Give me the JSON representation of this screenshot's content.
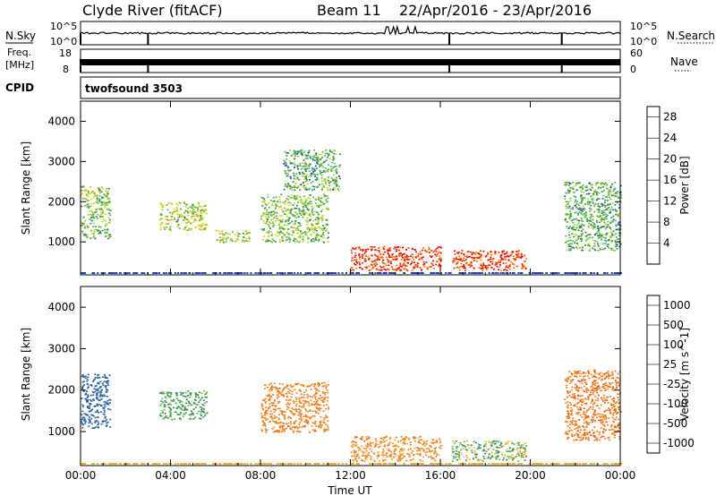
{
  "header": {
    "station": "Clyde River (fitACF)",
    "beam": "Beam 11",
    "date_range": "22/Apr/2016 - 23/Apr/2016"
  },
  "strip_labels": {
    "nsky": "N.Sky",
    "freq_line1": "Freq.",
    "freq_line2": "[MHz]",
    "cpid": "CPID",
    "nsearch": "N.Search",
    "nave": "Nave",
    "cpid_value": "twofsound 3503",
    "nsky_ticks": [
      "10^5",
      "10^0"
    ],
    "freq_ticks": [
      "18",
      "8"
    ],
    "nsearch_ticks": [
      "10^5",
      "10^0"
    ],
    "nave_ticks": [
      "60",
      "0"
    ]
  },
  "colors": {
    "power_scale": [
      "#0018ff",
      "#1e3cb4",
      "#2c8a5a",
      "#58b848",
      "#c8d228",
      "#f5b000",
      "#ff7a00",
      "#f03000",
      "#e00000"
    ],
    "velocity_scale": [
      "#2040c8",
      "#2860a0",
      "#3c8c5a",
      "#60c040",
      "#c8c8c8",
      "#f0b020",
      "#f08020",
      "#e85010",
      "#e00000"
    ]
  },
  "chart_data": [
    {
      "type": "heatmap",
      "quantity": "Power",
      "xlabel": "",
      "ylabel": "Slant Range [km]",
      "x_ticks": [
        "00:00",
        "04:00",
        "08:00",
        "12:00",
        "16:00",
        "20:00",
        "00:00"
      ],
      "y_ticks": [
        1000,
        2000,
        3000,
        4000
      ],
      "ylim": [
        180,
        4500
      ],
      "colorbar_label": "Power [dB]",
      "colorbar_ticks": [
        4,
        8,
        12,
        16,
        20,
        24,
        28
      ],
      "colorbar_range": [
        0,
        30
      ],
      "regions": [
        {
          "t0": 0.0,
          "t1": 1.3,
          "r0": 1100,
          "r1": 2400,
          "power": 12
        },
        {
          "t0": 3.5,
          "t1": 5.6,
          "r0": 1300,
          "r1": 2000,
          "power": 14
        },
        {
          "t0": 6.0,
          "t1": 7.5,
          "r0": 1000,
          "r1": 1300,
          "power": 14
        },
        {
          "t0": 8.0,
          "t1": 11.0,
          "r0": 1000,
          "r1": 2200,
          "power": 12
        },
        {
          "t0": 9.0,
          "t1": 11.5,
          "r0": 2300,
          "r1": 3300,
          "power": 10
        },
        {
          "t0": 12.0,
          "t1": 16.0,
          "r0": 300,
          "r1": 900,
          "power": 26
        },
        {
          "t0": 16.5,
          "t1": 19.8,
          "r0": 300,
          "r1": 800,
          "power": 26
        },
        {
          "t0": 21.5,
          "t1": 24.0,
          "r0": 800,
          "r1": 2500,
          "power": 10
        }
      ]
    },
    {
      "type": "heatmap",
      "quantity": "Velocity",
      "xlabel": "Time UT",
      "ylabel": "Slant Range [km]",
      "x_ticks": [
        "00:00",
        "04:00",
        "08:00",
        "12:00",
        "16:00",
        "20:00",
        "00:00"
      ],
      "y_ticks": [
        1000,
        2000,
        3000,
        4000
      ],
      "ylim": [
        180,
        4500
      ],
      "colorbar_label": "Velocity [m s^-1]",
      "colorbar_ticks": [
        1000,
        500,
        100,
        25,
        -25,
        -100,
        -500,
        -1000
      ],
      "regions": [
        {
          "t0": 0.0,
          "t1": 1.3,
          "r0": 1100,
          "r1": 2400,
          "velocity": 700
        },
        {
          "t0": 3.5,
          "t1": 5.6,
          "r0": 1300,
          "r1": 2000,
          "velocity": 150
        },
        {
          "t0": 8.0,
          "t1": 11.0,
          "r0": 1000,
          "r1": 2200,
          "velocity": -300
        },
        {
          "t0": 12.0,
          "t1": 16.0,
          "r0": 300,
          "r1": 900,
          "velocity": -150
        },
        {
          "t0": 16.5,
          "t1": 19.8,
          "r0": 300,
          "r1": 800,
          "velocity": 50
        },
        {
          "t0": 21.5,
          "t1": 24.0,
          "r0": 800,
          "r1": 2500,
          "velocity": -400
        }
      ]
    }
  ]
}
